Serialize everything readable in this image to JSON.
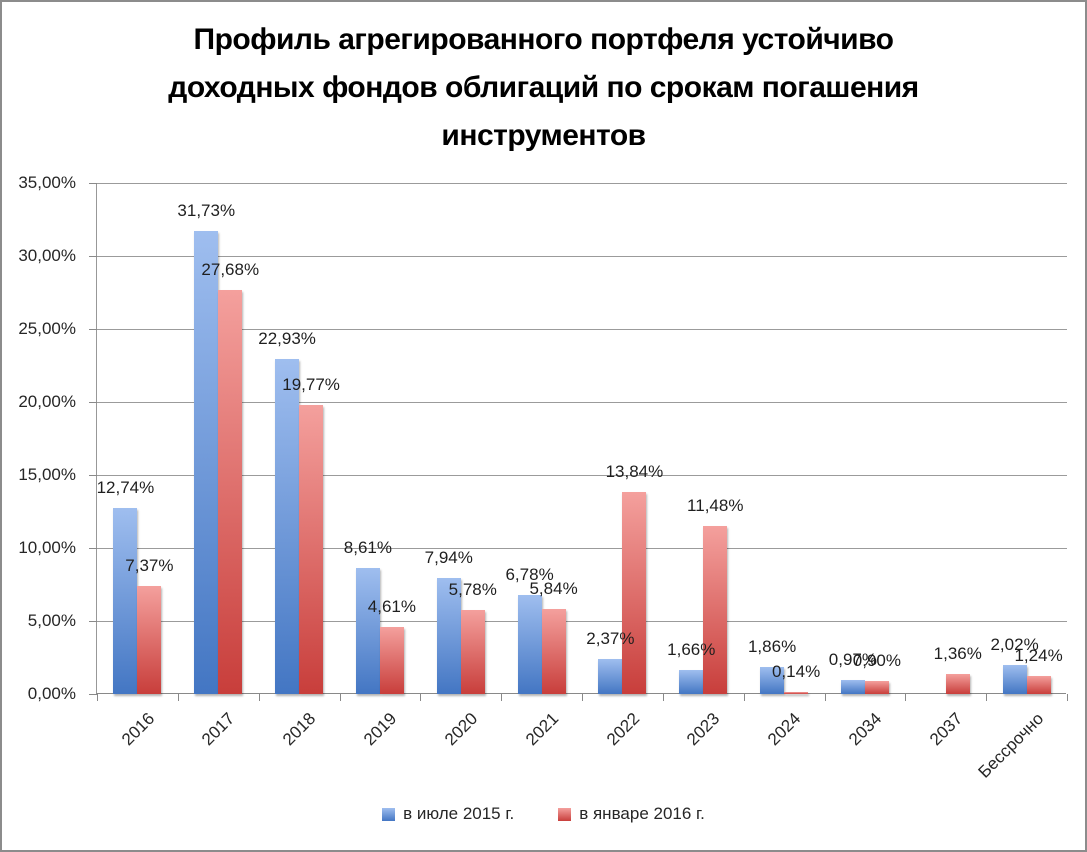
{
  "chart_data": {
    "type": "bar",
    "title": "Профиль агрегированного портфеля устойчиво доходных фондов облигаций по срокам погашения инструментов",
    "categories": [
      "2016",
      "2017",
      "2018",
      "2019",
      "2020",
      "2021",
      "2022",
      "2023",
      "2024",
      "2034",
      "2037",
      "Бессрочно"
    ],
    "series": [
      {
        "name": "в июле 2015 г.",
        "key": "jul-2015",
        "color_top": "#9fbeef",
        "color_bottom": "#4376c3",
        "values": [
          12.74,
          31.73,
          22.93,
          8.61,
          7.94,
          6.78,
          2.37,
          1.66,
          1.86,
          0.97,
          null,
          2.02
        ],
        "labels": [
          "12,74%",
          "31,73%",
          "22,93%",
          "8,61%",
          "7,94%",
          "6,78%",
          "2,37%",
          "1,66%",
          "1,86%",
          "0,97%",
          null,
          "2,02%"
        ]
      },
      {
        "name": "в январе 2016 г.",
        "key": "jan-2016",
        "color_top": "#f4a09d",
        "color_bottom": "#c83e3b",
        "values": [
          7.37,
          27.68,
          19.77,
          4.61,
          5.78,
          5.84,
          13.84,
          11.48,
          0.14,
          0.9,
          1.36,
          1.24
        ],
        "labels": [
          "7,37%",
          "27,68%",
          "19,77%",
          "4,61%",
          "5,78%",
          "5,84%",
          "13,84%",
          "11,48%",
          "0,14%",
          "0,90%",
          "1,36%",
          "1,24%"
        ]
      }
    ],
    "ylim": [
      0,
      35
    ],
    "y_ticks": [
      {
        "value": 0,
        "label": "0,00%"
      },
      {
        "value": 5,
        "label": "5,00%"
      },
      {
        "value": 10,
        "label": "10,00%"
      },
      {
        "value": 15,
        "label": "15,00%"
      },
      {
        "value": 20,
        "label": "20,00%"
      },
      {
        "value": 25,
        "label": "25,00%"
      },
      {
        "value": 30,
        "label": "30,00%"
      },
      {
        "value": 35,
        "label": "35,00%"
      }
    ],
    "grid": true,
    "legend_position": "bottom",
    "colors": {
      "grid": "#9b9b9b",
      "axis": "#898989",
      "text": "#262626",
      "frame_border": "#8c8c8c",
      "background": "#ffffff"
    }
  }
}
